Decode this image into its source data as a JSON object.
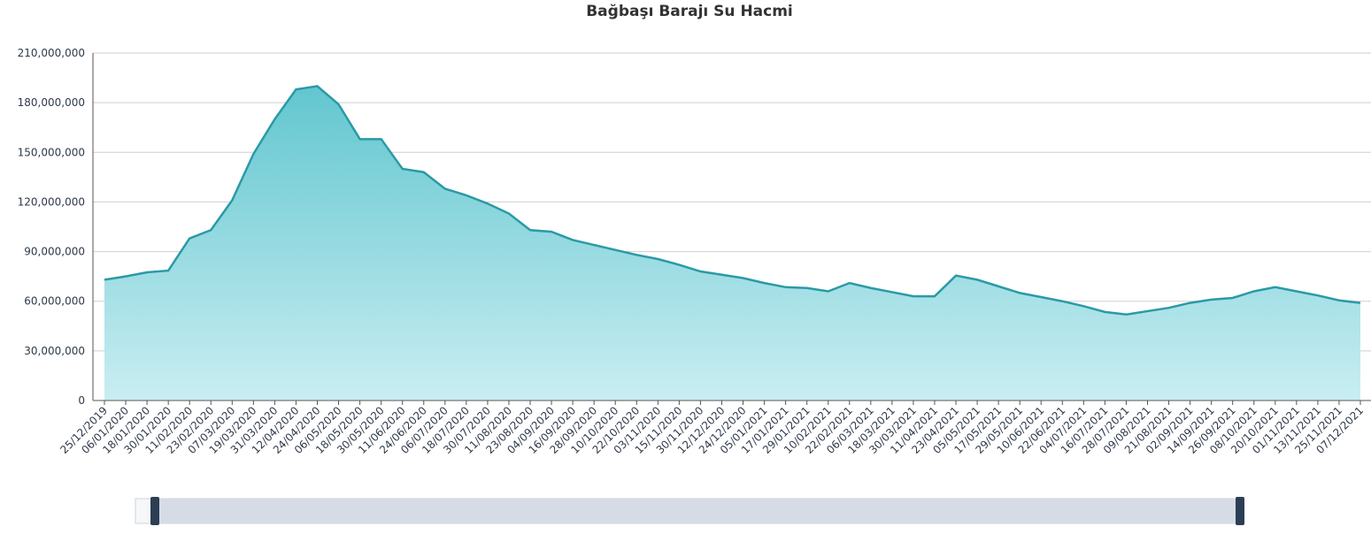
{
  "chart_data": {
    "type": "area",
    "title": "Bağbaşı Barajı Su Hacmi",
    "categories": [
      "25/12/2019",
      "06/01/2020",
      "18/01/2020",
      "30/01/2020",
      "11/02/2020",
      "23/02/2020",
      "07/03/2020",
      "19/03/2020",
      "31/03/2020",
      "12/04/2020",
      "24/04/2020",
      "06/05/2020",
      "18/05/2020",
      "30/05/2020",
      "11/06/2020",
      "24/06/2020",
      "06/07/2020",
      "18/07/2020",
      "30/07/2020",
      "11/08/2020",
      "23/08/2020",
      "04/09/2020",
      "16/09/2020",
      "28/09/2020",
      "10/10/2020",
      "22/10/2020",
      "03/11/2020",
      "15/11/2020",
      "30/11/2020",
      "12/12/2020",
      "24/12/2020",
      "05/01/2021",
      "17/01/2021",
      "29/01/2021",
      "10/02/2021",
      "22/02/2021",
      "06/03/2021",
      "18/03/2021",
      "30/03/2021",
      "11/04/2021",
      "23/04/2021",
      "05/05/2021",
      "17/05/2021",
      "29/05/2021",
      "10/06/2021",
      "22/06/2021",
      "04/07/2021",
      "16/07/2021",
      "28/07/2021",
      "09/08/2021",
      "21/08/2021",
      "02/09/2021",
      "14/09/2021",
      "26/09/2021",
      "08/10/2021",
      "20/10/2021",
      "01/11/2021",
      "13/11/2021",
      "25/11/2021",
      "07/12/2021"
    ],
    "values": [
      73000000,
      75000000,
      77500000,
      78500000,
      98000000,
      103000000,
      121000000,
      149000000,
      170000000,
      188000000,
      190000000,
      179000000,
      158000000,
      158000000,
      140000000,
      138000000,
      128000000,
      124000000,
      119000000,
      113000000,
      103000000,
      102000000,
      97000000,
      94000000,
      91000000,
      88000000,
      85500000,
      82000000,
      78000000,
      76000000,
      74000000,
      71000000,
      68500000,
      68000000,
      66000000,
      71000000,
      68000000,
      65500000,
      63000000,
      63000000,
      75500000,
      73000000,
      69000000,
      65000000,
      62500000,
      60000000,
      57000000,
      53500000,
      52000000,
      54000000,
      56000000,
      59000000,
      61000000,
      62000000,
      66000000,
      68500000,
      66000000,
      63500000,
      60500000,
      59000000
    ],
    "color": "#2a9aa6",
    "ylim": [
      0,
      210000000
    ],
    "yticks": [
      0,
      {
        "value": 30000000,
        "label": "30,000,000"
      },
      {
        "value": 60000000,
        "label": "60,000,000"
      },
      {
        "value": 90000000,
        "label": "90,000,000"
      },
      {
        "value": 120000000,
        "label": "120,000,000"
      },
      {
        "value": 150000000,
        "label": "150,000,000"
      },
      {
        "value": 180000000,
        "label": "180,000,000"
      },
      {
        "value": 210000000,
        "label": "210,000,000"
      }
    ],
    "grid": true
  }
}
